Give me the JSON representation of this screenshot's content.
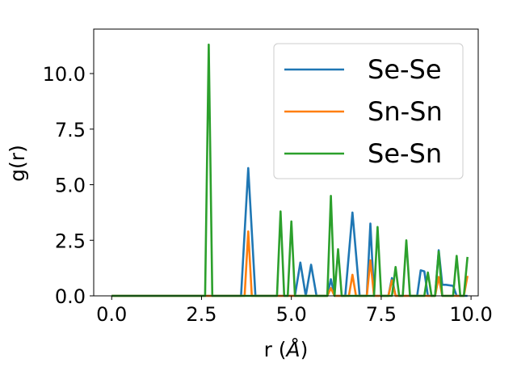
{
  "chart_data": {
    "type": "line",
    "title": "",
    "xlabel": "r (",
    "xlabel_symbol": "Å",
    "xlabel_close": ")",
    "ylabel": "g(r)",
    "xlim": [
      -0.5,
      10.2
    ],
    "ylim": [
      0,
      12
    ],
    "xticks": [
      0.0,
      2.5,
      5.0,
      7.5,
      10.0
    ],
    "xtick_labels": [
      "0.0",
      "2.5",
      "5.0",
      "7.5",
      "10.0"
    ],
    "yticks": [
      0.0,
      2.5,
      5.0,
      7.5,
      10.0
    ],
    "ytick_labels": [
      "0.0",
      "2.5",
      "5.0",
      "7.5",
      "10.0"
    ],
    "grid": false,
    "legend_position": "top-right",
    "series": [
      {
        "name": "Se-Se",
        "color": "#1f77b4",
        "x": [
          0.0,
          3.6,
          3.8,
          4.0,
          5.1,
          5.25,
          5.4,
          5.55,
          5.7,
          6.0,
          6.1,
          6.2,
          6.5,
          6.7,
          6.9,
          7.1,
          7.2,
          7.3,
          7.5,
          7.7,
          7.8,
          7.9,
          8.5,
          8.6,
          8.7,
          8.8,
          8.9,
          9.0,
          9.1,
          9.2,
          9.3,
          9.5,
          9.6,
          9.7,
          9.8,
          9.9
        ],
        "y": [
          0.0,
          0.0,
          5.75,
          0.0,
          0.0,
          1.5,
          0.0,
          1.4,
          0.0,
          0.0,
          0.75,
          0.0,
          0.0,
          3.75,
          0.0,
          0.0,
          3.25,
          0.0,
          0.0,
          0.0,
          0.8,
          0.0,
          0.0,
          1.15,
          1.1,
          0.0,
          0.0,
          0.0,
          2.05,
          0.5,
          0.5,
          0.45,
          0.0,
          0.0,
          0.0,
          0.0
        ]
      },
      {
        "name": "Sn-Sn",
        "color": "#ff7f0e",
        "x": [
          0.0,
          3.7,
          3.8,
          3.9,
          6.0,
          6.1,
          6.2,
          6.6,
          6.7,
          6.8,
          7.1,
          7.2,
          7.3,
          7.7,
          7.8,
          7.9,
          9.0,
          9.1,
          9.2,
          9.8,
          9.9
        ],
        "y": [
          0.0,
          0.0,
          2.9,
          0.0,
          0.0,
          0.35,
          0.0,
          0.0,
          0.95,
          0.0,
          0.0,
          1.6,
          0.0,
          0.0,
          0.7,
          0.0,
          0.0,
          0.85,
          0.0,
          0.0,
          0.9
        ]
      },
      {
        "name": "Se-Sn",
        "color": "#2ca02c",
        "x": [
          0.0,
          2.6,
          2.7,
          2.8,
          4.6,
          4.7,
          4.8,
          4.9,
          5.0,
          5.1,
          6.0,
          6.1,
          6.2,
          6.3,
          6.4,
          7.3,
          7.4,
          7.5,
          7.8,
          7.9,
          8.0,
          8.1,
          8.2,
          8.3,
          8.7,
          8.8,
          8.9,
          9.0,
          9.1,
          9.2,
          9.3,
          9.5,
          9.6,
          9.7,
          9.8,
          9.9
        ],
        "y": [
          0.0,
          0.0,
          11.3,
          0.0,
          0.0,
          3.8,
          0.0,
          0.0,
          3.35,
          0.0,
          0.0,
          4.5,
          0.0,
          2.1,
          0.0,
          0.0,
          3.1,
          0.0,
          0.0,
          1.3,
          0.0,
          0.0,
          2.5,
          0.0,
          0.0,
          1.05,
          0.0,
          0.0,
          2.0,
          0.0,
          0.0,
          0.0,
          1.8,
          0.0,
          0.0,
          1.75
        ]
      }
    ]
  }
}
